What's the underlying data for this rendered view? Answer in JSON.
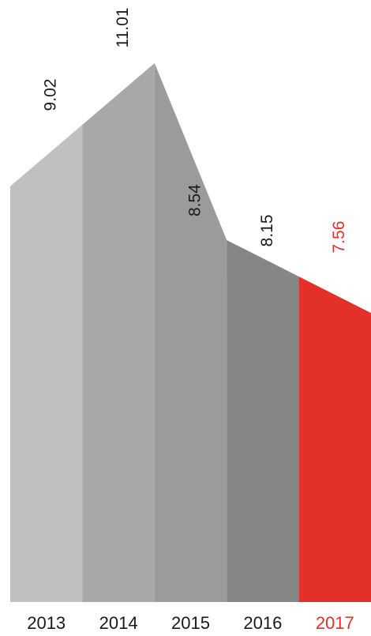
{
  "chart_data": {
    "type": "area",
    "categories": [
      "2013",
      "2014",
      "2015",
      "2016",
      "2017"
    ],
    "values": [
      9.02,
      11.01,
      8.54,
      8.15,
      7.56
    ],
    "value_labels": [
      "9.02",
      "11.01",
      "8.54",
      "8.15",
      "7.56"
    ],
    "title": "",
    "xlabel": "",
    "ylabel": "",
    "highlight_category": "2017",
    "colors": {
      "segments": [
        "#c0c0c0",
        "#a7a9a9",
        "#9a9c9c",
        "#858786",
        "#e3312a"
      ],
      "value_text": [
        "#1a1a1a",
        "#1a1a1a",
        "#1a1a1a",
        "#1a1a1a",
        "#e3312a"
      ],
      "year_text": [
        "#1a1a1a",
        "#1a1a1a",
        "#1a1a1a",
        "#1a1a1a",
        "#e3312a"
      ]
    }
  }
}
